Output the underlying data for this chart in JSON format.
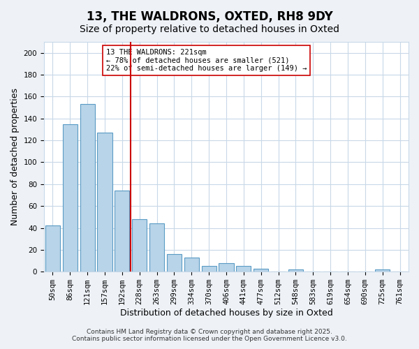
{
  "title": "13, THE WALDRONS, OXTED, RH8 9DY",
  "subtitle": "Size of property relative to detached houses in Oxted",
  "xlabel": "Distribution of detached houses by size in Oxted",
  "ylabel": "Number of detached properties",
  "bar_labels": [
    "50sqm",
    "86sqm",
    "121sqm",
    "157sqm",
    "192sqm",
    "228sqm",
    "263sqm",
    "299sqm",
    "334sqm",
    "370sqm",
    "406sqm",
    "441sqm",
    "477sqm",
    "512sqm",
    "548sqm",
    "583sqm",
    "619sqm",
    "654sqm",
    "690sqm",
    "725sqm",
    "761sqm"
  ],
  "bar_values": [
    42,
    135,
    153,
    127,
    74,
    48,
    44,
    16,
    13,
    5,
    8,
    5,
    3,
    0,
    2,
    0,
    0,
    0,
    0,
    2,
    0
  ],
  "bar_color": "#b8d4e8",
  "bar_edge_color": "#5a9bc4",
  "vline_index": 5,
  "vline_color": "#cc0000",
  "annotation_title": "13 THE WALDRONS: 221sqm",
  "annotation_line1": "← 78% of detached houses are smaller (521)",
  "annotation_line2": "22% of semi-detached houses are larger (149) →",
  "ylim": [
    0,
    210
  ],
  "yticks": [
    0,
    20,
    40,
    60,
    80,
    100,
    120,
    140,
    160,
    180,
    200
  ],
  "footer_line1": "Contains HM Land Registry data © Crown copyright and database right 2025.",
  "footer_line2": "Contains public sector information licensed under the Open Government Licence v3.0.",
  "background_color": "#eef2f7",
  "plot_background": "#ffffff",
  "grid_color": "#c8d8e8",
  "title_fontsize": 12,
  "subtitle_fontsize": 10,
  "xlabel_fontsize": 9,
  "ylabel_fontsize": 9,
  "tick_fontsize": 7.5,
  "footer_fontsize": 6.5
}
